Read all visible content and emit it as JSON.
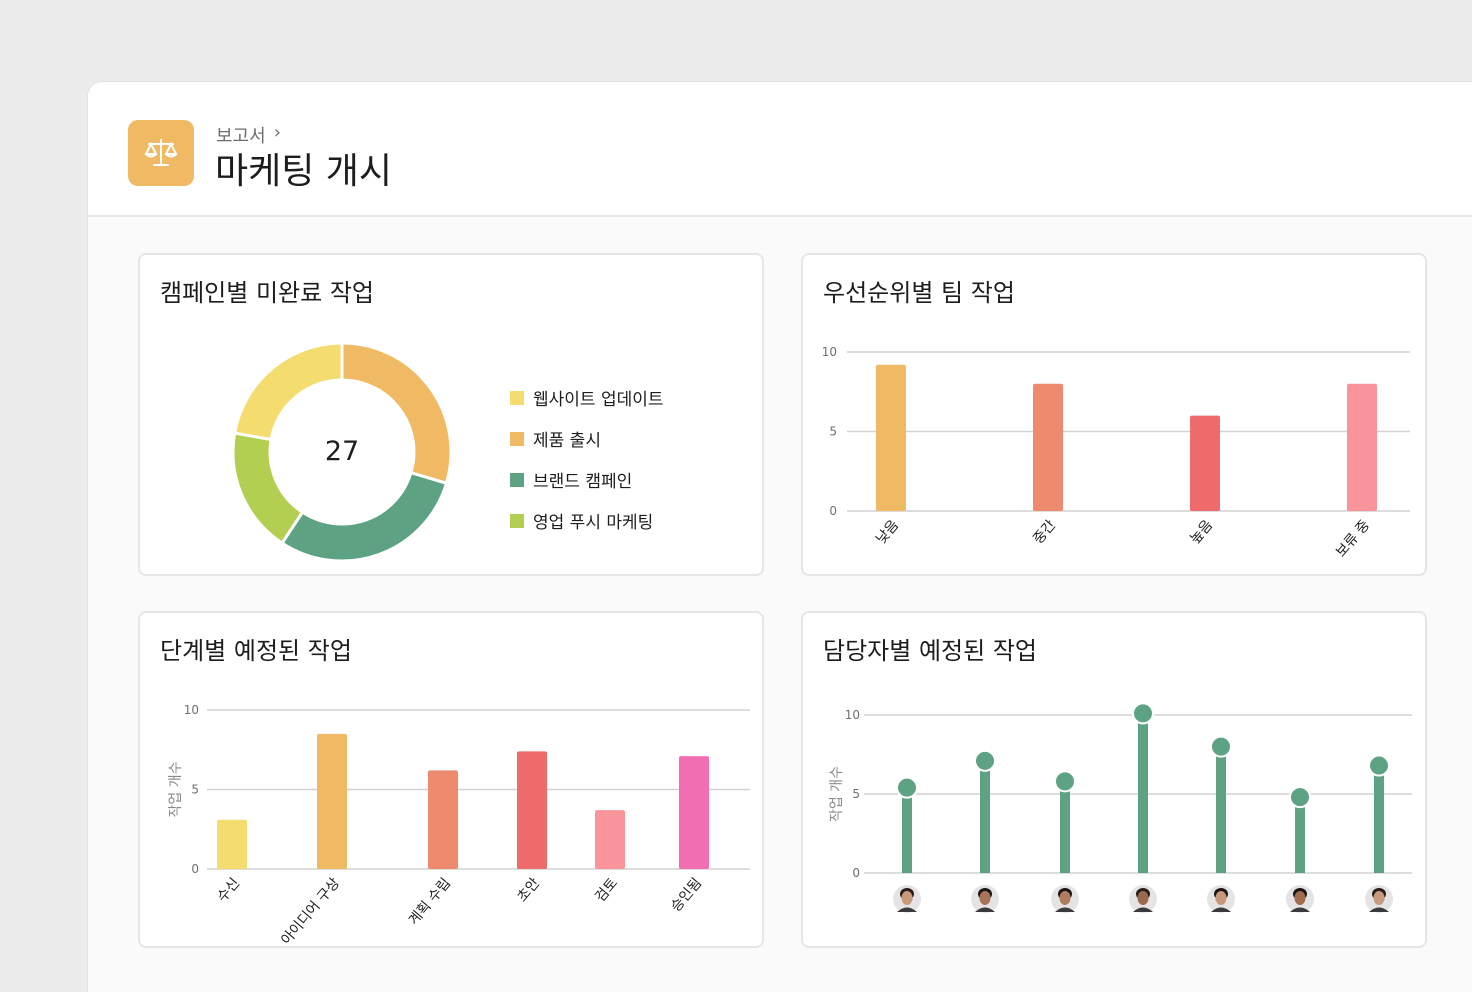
{
  "header": {
    "breadcrumb": "보고서",
    "breadcrumb_chevron": "›",
    "title": "마케팅 개시",
    "app_icon": "scale-icon",
    "accent": "#f0b963"
  },
  "chart_data": [
    {
      "type": "pie",
      "title": "캠페인별 미완료 작업",
      "center_label": "27",
      "categories": [
        "웹사이트 업데이트",
        "제품 출시",
        "브랜드 캠페인",
        "영업 푸시 마케팅"
      ],
      "values": [
        6,
        8,
        8,
        5
      ],
      "colors": [
        "#f5dc6e",
        "#f0b963",
        "#5ca283",
        "#b2cf52"
      ],
      "draw_order": [
        "제품 출시",
        "브랜드 캠페인",
        "영업 푸시 마케팅",
        "웹사이트 업데이트"
      ],
      "legend": "right"
    },
    {
      "type": "bar",
      "title": "우선순위별 팀 작업",
      "categories": [
        "낮음",
        "중간",
        "높음",
        "보류 중"
      ],
      "values": [
        9.2,
        8,
        6,
        8
      ],
      "colors": [
        "#f0b963",
        "#ee8b6f",
        "#ef6b6b",
        "#f9949a"
      ],
      "yticks": [
        "0",
        "5",
        "10"
      ],
      "ylim": [
        0,
        10
      ],
      "grid": true
    },
    {
      "type": "bar",
      "title": "단계별 예정된 작업",
      "ylabel": "작업 개수",
      "categories": [
        "수신",
        "아이디어 구상",
        "계획 수립",
        "초안",
        "검토",
        "승인됨"
      ],
      "values": [
        3.1,
        8.5,
        6.2,
        7.4,
        3.7,
        7.1
      ],
      "colors": [
        "#f5dc6e",
        "#f0b963",
        "#ee8b6f",
        "#ef6b6b",
        "#f9949a",
        "#f26eb2"
      ],
      "yticks": [
        "0",
        "5",
        "10"
      ],
      "ylim": [
        0,
        10
      ],
      "grid": true
    },
    {
      "type": "lollipop",
      "title": "담당자별 예정된 작업",
      "ylabel": "작업 개수",
      "categories": [
        "avatar-1",
        "avatar-2",
        "avatar-3",
        "avatar-4",
        "avatar-5",
        "avatar-6",
        "avatar-7"
      ],
      "values": [
        5.4,
        7.1,
        5.8,
        10.1,
        8.0,
        4.8,
        6.8
      ],
      "color": "#5ca283",
      "yticks": [
        "0",
        "5",
        "10"
      ],
      "ylim": [
        0,
        10
      ],
      "grid": true
    }
  ]
}
